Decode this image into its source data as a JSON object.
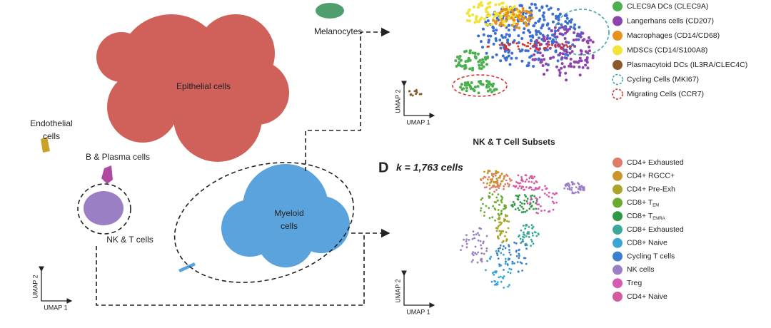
{
  "main_umap": {
    "clusters": [
      {
        "label": [
          "Melanocytes"
        ]
      },
      {
        "label": [
          "Epithelial cells"
        ]
      },
      {
        "label": [
          "Endothelial",
          "cells"
        ]
      },
      {
        "label": [
          "B & Plasma cells"
        ]
      },
      {
        "label": [
          "NK & T cells"
        ]
      },
      {
        "label": [
          "Myeloid",
          "cells"
        ]
      }
    ],
    "x_axis": "UMAP 1",
    "y_axis": "UMAP 2"
  },
  "myeloid_panel": {
    "legend": [
      {
        "label": "CLEC9A DCs (CLEC9A)",
        "color": "#4caf50",
        "style": "fill"
      },
      {
        "label": "Langerhans cells (CD207)",
        "color": "#8e44ad",
        "style": "fill"
      },
      {
        "label": "Macrophages (CD14/CD68)",
        "color": "#e8901e",
        "style": "fill"
      },
      {
        "label": "MDSCs (CD14/S100A8)",
        "color": "#f2e33a",
        "style": "fill"
      },
      {
        "label": "Plasmacytoid DCs (IL3RA/CLEC4C)",
        "color": "#8b5a2b",
        "style": "fill"
      },
      {
        "label": "Cycling Cells (MKI67)",
        "color": "#3aa8a0",
        "style": "dashed"
      },
      {
        "label": "Migrating Cells (CCR7)",
        "color": "#d7322c",
        "style": "dashed"
      }
    ],
    "x_axis": "UMAP 1",
    "y_axis": "UMAP 2"
  },
  "nkt_panel": {
    "panel_letter": "D",
    "cell_count": "k = 1,763 cells",
    "title": "NK & T Cell Subsets",
    "legend": [
      {
        "label": "CD4+ Exhausted",
        "color": "#e07b6a"
      },
      {
        "label": "CD4+ RGCC+",
        "color": "#c8962c"
      },
      {
        "label": "CD4+ Pre-Exh",
        "color": "#a8a52a"
      },
      {
        "label": "CD8+ T",
        "subscript": "EM",
        "color": "#6aaa2e"
      },
      {
        "label": "CD8+ T",
        "subscript": "EMRA",
        "color": "#2e9a48"
      },
      {
        "label": "CD8+ Exhausted",
        "color": "#3aa89a"
      },
      {
        "label": "CD8+ Naive",
        "color": "#39a6d6"
      },
      {
        "label": "Cycling T cells",
        "color": "#3b7fd0"
      },
      {
        "label": "NK cells",
        "color": "#9a7fc4"
      },
      {
        "label": "Treg",
        "color": "#d45cb4"
      },
      {
        "label": "CD4+ Naive",
        "color": "#d65a9e"
      }
    ],
    "x_axis": "UMAP 1",
    "y_axis": "UMAP 2"
  }
}
